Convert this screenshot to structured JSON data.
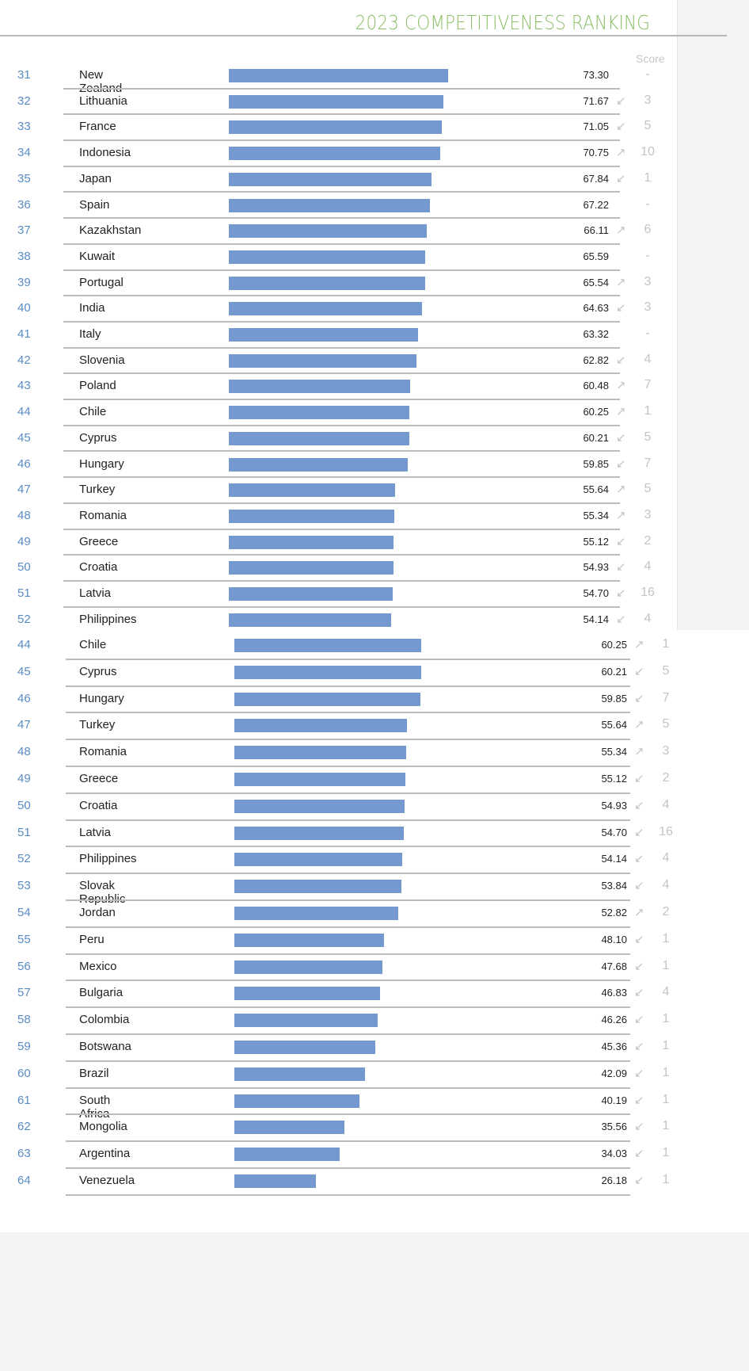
{
  "chart_data": [
    {
      "type": "bar",
      "title": "2023 COMPETITIVENESS RANKING",
      "score_header": "Score",
      "rows": [
        {
          "rank": "31",
          "country": "New Zealand",
          "score": 73.3,
          "dir": "none",
          "change": "-"
        },
        {
          "rank": "32",
          "country": "Lithuania",
          "score": 71.67,
          "dir": "down",
          "change": "3"
        },
        {
          "rank": "33",
          "country": "France",
          "score": 71.05,
          "dir": "down",
          "change": "5"
        },
        {
          "rank": "34",
          "country": "Indonesia",
          "score": 70.75,
          "dir": "up",
          "change": "10"
        },
        {
          "rank": "35",
          "country": "Japan",
          "score": 67.84,
          "dir": "down",
          "change": "1"
        },
        {
          "rank": "36",
          "country": "Spain",
          "score": 67.22,
          "dir": "none",
          "change": "-"
        },
        {
          "rank": "37",
          "country": "Kazakhstan",
          "score": 66.11,
          "dir": "up",
          "change": "6"
        },
        {
          "rank": "38",
          "country": "Kuwait",
          "score": 65.59,
          "dir": "none",
          "change": "-"
        },
        {
          "rank": "39",
          "country": "Portugal",
          "score": 65.54,
          "dir": "up",
          "change": "3"
        },
        {
          "rank": "40",
          "country": "India",
          "score": 64.63,
          "dir": "down",
          "change": "3"
        },
        {
          "rank": "41",
          "country": "Italy",
          "score": 63.32,
          "dir": "none",
          "change": "-"
        },
        {
          "rank": "42",
          "country": "Slovenia",
          "score": 62.82,
          "dir": "down",
          "change": "4"
        },
        {
          "rank": "43",
          "country": "Poland",
          "score": 60.48,
          "dir": "up",
          "change": "7"
        },
        {
          "rank": "44",
          "country": "Chile",
          "score": 60.25,
          "dir": "up",
          "change": "1"
        },
        {
          "rank": "45",
          "country": "Cyprus",
          "score": 60.21,
          "dir": "down",
          "change": "5"
        },
        {
          "rank": "46",
          "country": "Hungary",
          "score": 59.85,
          "dir": "down",
          "change": "7"
        },
        {
          "rank": "47",
          "country": "Turkey",
          "score": 55.64,
          "dir": "up",
          "change": "5"
        },
        {
          "rank": "48",
          "country": "Romania",
          "score": 55.34,
          "dir": "up",
          "change": "3"
        },
        {
          "rank": "49",
          "country": "Greece",
          "score": 55.12,
          "dir": "down",
          "change": "2"
        },
        {
          "rank": "50",
          "country": "Croatia",
          "score": 54.93,
          "dir": "down",
          "change": "4"
        },
        {
          "rank": "51",
          "country": "Latvia",
          "score": 54.7,
          "dir": "down",
          "change": "16"
        },
        {
          "rank": "52",
          "country": "Philippines",
          "score": 54.14,
          "dir": "down",
          "change": "4"
        }
      ]
    },
    {
      "type": "bar",
      "rows": [
        {
          "rank": "44",
          "country": "Chile",
          "score": 60.25,
          "dir": "up",
          "change": "1"
        },
        {
          "rank": "45",
          "country": "Cyprus",
          "score": 60.21,
          "dir": "down",
          "change": "5"
        },
        {
          "rank": "46",
          "country": "Hungary",
          "score": 59.85,
          "dir": "down",
          "change": "7"
        },
        {
          "rank": "47",
          "country": "Turkey",
          "score": 55.64,
          "dir": "up",
          "change": "5"
        },
        {
          "rank": "48",
          "country": "Romania",
          "score": 55.34,
          "dir": "up",
          "change": "3"
        },
        {
          "rank": "49",
          "country": "Greece",
          "score": 55.12,
          "dir": "down",
          "change": "2"
        },
        {
          "rank": "50",
          "country": "Croatia",
          "score": 54.93,
          "dir": "down",
          "change": "4"
        },
        {
          "rank": "51",
          "country": "Latvia",
          "score": 54.7,
          "dir": "down",
          "change": "16"
        },
        {
          "rank": "52",
          "country": "Philippines",
          "score": 54.14,
          "dir": "down",
          "change": "4"
        },
        {
          "rank": "53",
          "country": "Slovak Republic",
          "score": 53.84,
          "dir": "down",
          "change": "4"
        },
        {
          "rank": "54",
          "country": "Jordan",
          "score": 52.82,
          "dir": "up",
          "change": "2"
        },
        {
          "rank": "55",
          "country": "Peru",
          "score": 48.1,
          "dir": "down",
          "change": "1"
        },
        {
          "rank": "56",
          "country": "Mexico",
          "score": 47.68,
          "dir": "down",
          "change": "1"
        },
        {
          "rank": "57",
          "country": "Bulgaria",
          "score": 46.83,
          "dir": "down",
          "change": "4"
        },
        {
          "rank": "58",
          "country": "Colombia",
          "score": 46.26,
          "dir": "down",
          "change": "1"
        },
        {
          "rank": "59",
          "country": "Botswana",
          "score": 45.36,
          "dir": "down",
          "change": "1"
        },
        {
          "rank": "60",
          "country": "Brazil",
          "score": 42.09,
          "dir": "down",
          "change": "1"
        },
        {
          "rank": "61",
          "country": "South Africa",
          "score": 40.19,
          "dir": "down",
          "change": "1"
        },
        {
          "rank": "62",
          "country": "Mongolia",
          "score": 35.56,
          "dir": "down",
          "change": "1"
        },
        {
          "rank": "63",
          "country": "Argentina",
          "score": 34.03,
          "dir": "down",
          "change": "1"
        },
        {
          "rank": "64",
          "country": "Venezuela",
          "score": 26.18,
          "dir": "down",
          "change": "1"
        }
      ]
    }
  ],
  "colors": {
    "bar": "#7399cf",
    "title": "#8cc06a",
    "rank": "#5a8cc4"
  }
}
